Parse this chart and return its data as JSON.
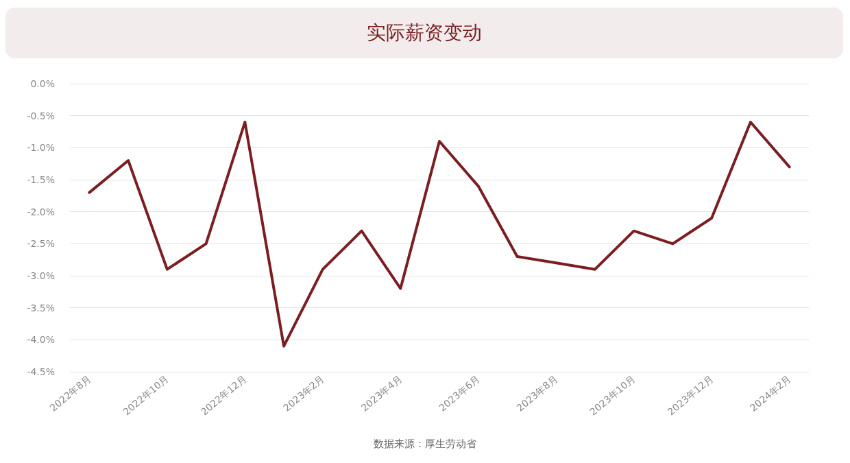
{
  "chart_data": {
    "type": "line",
    "title": "实际薪资变动",
    "categories": [
      "2022年8月",
      null,
      "2022年10月",
      null,
      "2022年12月",
      null,
      "2023年2月",
      null,
      "2023年4月",
      null,
      "2023年6月",
      null,
      "2023年8月",
      null,
      "2023年10月",
      null,
      "2023年12月",
      null,
      "2024年2月"
    ],
    "series": [
      {
        "color": "#7b1e22",
        "values": [
          -1.7,
          -1.2,
          -2.9,
          -2.5,
          -0.6,
          -4.1,
          -2.9,
          -2.3,
          -3.2,
          -0.9,
          -1.6,
          -2.7,
          -2.8,
          -2.9,
          -2.3,
          -2.5,
          -2.1,
          -0.6,
          -1.3
        ]
      }
    ],
    "ylim": [
      -4.5,
      0
    ],
    "yticks": [
      {
        "value": 0,
        "label": "0.0%"
      },
      {
        "value": -0.5,
        "label": "-0.5%"
      },
      {
        "value": -1,
        "label": "-1.0%"
      },
      {
        "value": -1.5,
        "label": "-1.5%"
      },
      {
        "value": -2,
        "label": "-2.0%"
      },
      {
        "value": -2.5,
        "label": "-2.5%"
      },
      {
        "value": -3,
        "label": "-3.0%"
      },
      {
        "value": -3.5,
        "label": "-3.5%"
      },
      {
        "value": -4,
        "label": "-4.0%"
      },
      {
        "value": -4.5,
        "label": "-4.5%"
      }
    ],
    "grid": "y",
    "marker": "none",
    "line_style": "solid",
    "annotations": [
      "数据来源：厚生劳动省"
    ]
  }
}
